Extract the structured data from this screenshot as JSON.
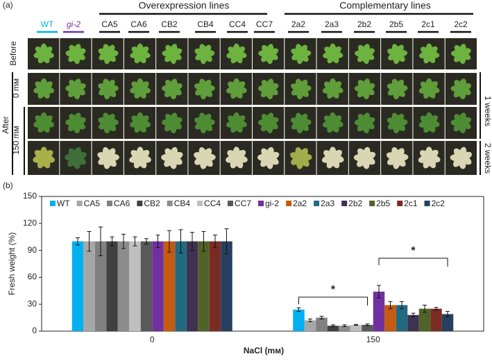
{
  "photo_panel": {
    "panel_label": "(a)",
    "group_headers": [
      "Overexpression lines",
      "Complementary lines"
    ],
    "columns": [
      "WT",
      "gi-2",
      "CA5",
      "CA6",
      "CB2",
      "CB4",
      "CC4",
      "CC7",
      "2a2",
      "2a3",
      "2b2",
      "2b5",
      "2c1",
      "2c2"
    ],
    "row_labels": {
      "before": "Before",
      "after": "After",
      "control": "0 mᴍ",
      "salt": "150 mᴍ",
      "week1": "1 weeks",
      "week2": "2 weeks"
    }
  },
  "chart_data": {
    "type": "bar",
    "panel_label": "(b)",
    "x_label": "NaCl (mᴍ)",
    "y_label": "Fresh weight (%)",
    "categories": [
      "0",
      "150"
    ],
    "ylim": [
      0,
      150
    ],
    "yticks": [
      0,
      30,
      60,
      90,
      120,
      150
    ],
    "annotations": [
      "*",
      "*"
    ],
    "series": [
      {
        "name": "WT",
        "color": "#00b0f0",
        "values": [
          100,
          24
        ],
        "errors": [
          4,
          2
        ]
      },
      {
        "name": "CA5",
        "color": "#a6a6a6",
        "values": [
          100,
          12
        ],
        "errors": [
          11,
          1.5
        ]
      },
      {
        "name": "CA6",
        "color": "#808080",
        "values": [
          100,
          15
        ],
        "errors": [
          16,
          1.5
        ]
      },
      {
        "name": "CB2",
        "color": "#404040",
        "values": [
          100,
          6
        ],
        "errors": [
          5,
          1
        ]
      },
      {
        "name": "CB4",
        "color": "#8c8c8c",
        "values": [
          100,
          6
        ],
        "errors": [
          8,
          1
        ]
      },
      {
        "name": "CC4",
        "color": "#bfbfbf",
        "values": [
          100,
          7
        ],
        "errors": [
          5,
          0.5
        ]
      },
      {
        "name": "CC7",
        "color": "#595959",
        "values": [
          100,
          7
        ],
        "errors": [
          3,
          1
        ]
      },
      {
        "name": "gi-2",
        "color": "#7030a0",
        "values": [
          100,
          44
        ],
        "errors": [
          7,
          7
        ]
      },
      {
        "name": "2a2",
        "color": "#c55a11",
        "values": [
          100,
          29
        ],
        "errors": [
          12,
          4
        ]
      },
      {
        "name": "2a3",
        "color": "#216a80",
        "values": [
          100,
          29
        ],
        "errors": [
          13,
          4
        ]
      },
      {
        "name": "2b2",
        "color": "#3f3151",
        "values": [
          100,
          18
        ],
        "errors": [
          10,
          2
        ]
      },
      {
        "name": "2b5",
        "color": "#4f6228",
        "values": [
          100,
          25
        ],
        "errors": [
          11,
          4
        ]
      },
      {
        "name": "2c1",
        "color": "#7b2c22",
        "values": [
          100,
          25
        ],
        "errors": [
          7,
          1.5
        ]
      },
      {
        "name": "2c2",
        "color": "#254061",
        "values": [
          100,
          19
        ],
        "errors": [
          14,
          3
        ]
      }
    ]
  }
}
